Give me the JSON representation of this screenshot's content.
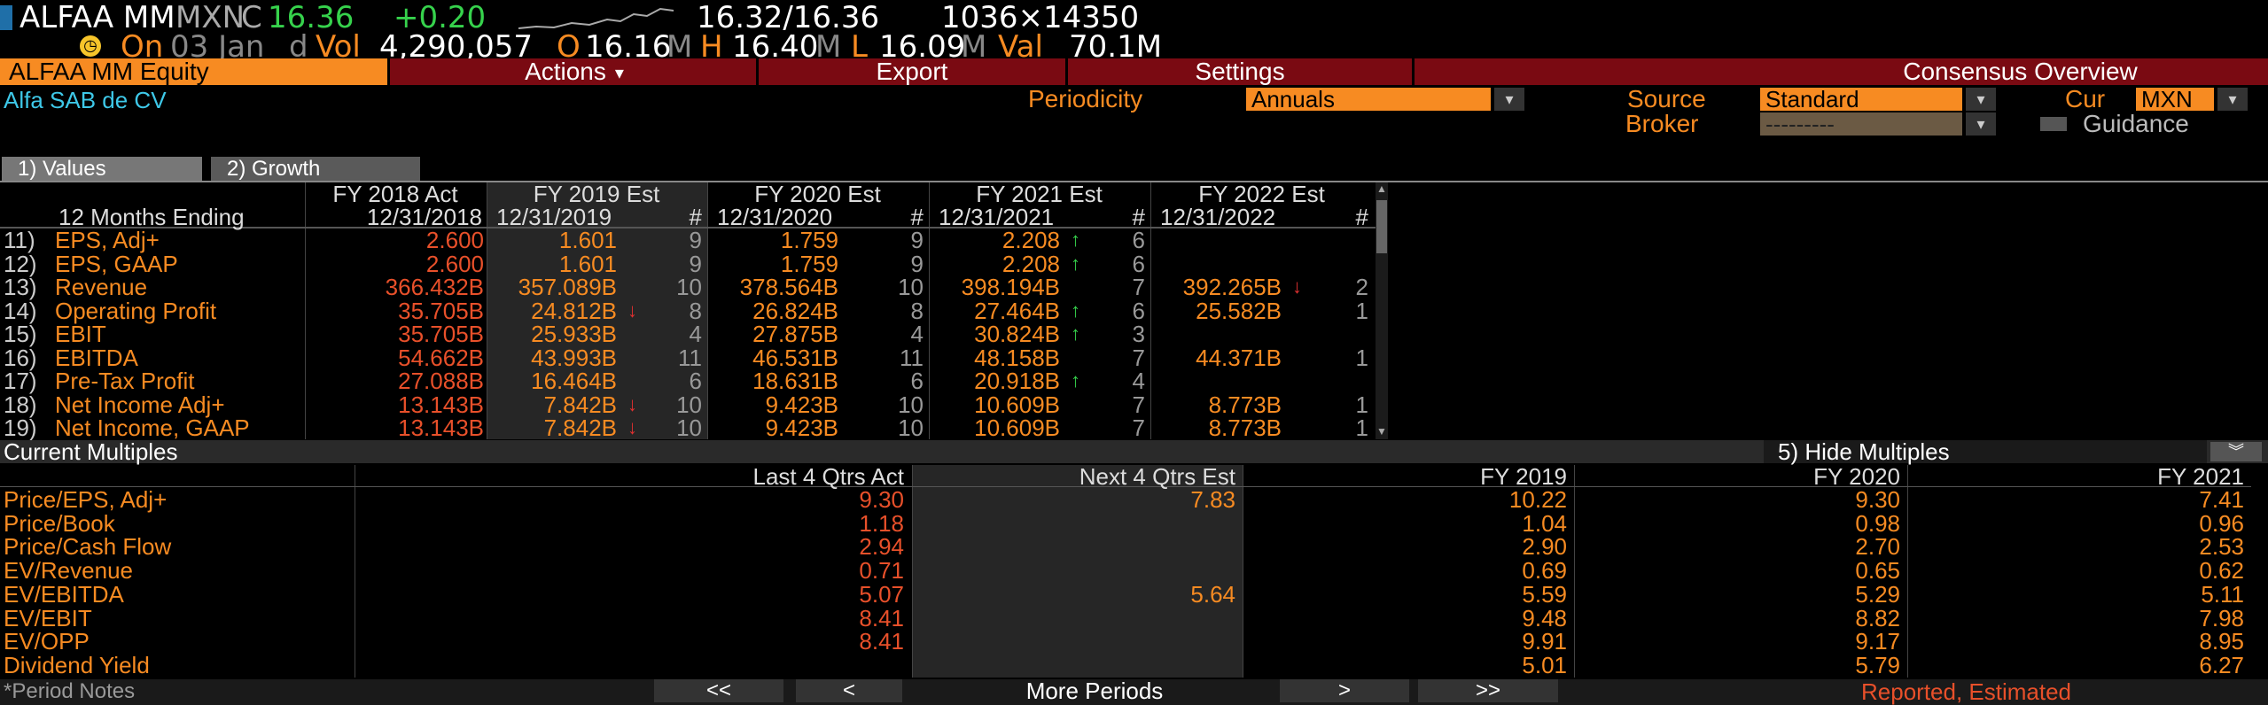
{
  "ticker": {
    "symbol": "ALFAA MM",
    "currency": "MXN",
    "flag": "C",
    "last": "16.36",
    "change": "+0.20",
    "bid_ask": "16.32/16.36",
    "size": "1036×14350",
    "on_label": "On",
    "date": "03 Jan",
    "d": "d",
    "vol_label": "Vol",
    "volume": "4,290,057",
    "open_label": "O",
    "open": "16.16",
    "open_m": "M",
    "high_label": "H",
    "high": "16.40",
    "high_m": "M",
    "low_label": "L",
    "low": "16.09",
    "low_m": "M",
    "val_label": "Val",
    "value": "70.1M"
  },
  "menubar": {
    "security": "ALFAA MM Equity",
    "actions": "Actions",
    "export": "Export",
    "settings": "Settings",
    "consensus": "Consensus Overview"
  },
  "company_name": "Alfa SAB de CV",
  "controls": {
    "periodicity_label": "Periodicity",
    "periodicity_value": "Annuals",
    "source_label": "Source",
    "source_value": "Standard",
    "cur_label": "Cur",
    "cur_value": "MXN",
    "broker_label": "Broker",
    "broker_value": "---------",
    "guidance_label": "Guidance"
  },
  "tabs": [
    "1) Values",
    "2) Growth"
  ],
  "table": {
    "row_header_label": "12 Months Ending",
    "columns": [
      {
        "title": "FY 2018 Act",
        "date": "12/31/2018",
        "count_header": ""
      },
      {
        "title": "FY 2019 Est",
        "date": "12/31/2019",
        "count_header": "#"
      },
      {
        "title": "FY 2020 Est",
        "date": "12/31/2020",
        "count_header": "#"
      },
      {
        "title": "FY 2021 Est",
        "date": "12/31/2021",
        "count_header": "#"
      },
      {
        "title": "FY 2022 Est",
        "date": "12/31/2022",
        "count_header": "#"
      }
    ],
    "rows": [
      {
        "num": "11)",
        "label": "EPS, Adj+",
        "act": "2.600",
        "est": [
          {
            "v": "1.601",
            "n": "9",
            "t": ""
          },
          {
            "v": "1.759",
            "n": "9",
            "t": ""
          },
          {
            "v": "2.208",
            "n": "6",
            "t": "up"
          },
          {
            "v": "",
            "n": "",
            "t": ""
          }
        ]
      },
      {
        "num": "12)",
        "label": "EPS, GAAP",
        "act": "2.600",
        "est": [
          {
            "v": "1.601",
            "n": "9",
            "t": ""
          },
          {
            "v": "1.759",
            "n": "9",
            "t": ""
          },
          {
            "v": "2.208",
            "n": "6",
            "t": "up"
          },
          {
            "v": "",
            "n": "",
            "t": ""
          }
        ]
      },
      {
        "num": "13)",
        "label": "Revenue",
        "act": "366.432B",
        "est": [
          {
            "v": "357.089B",
            "n": "10",
            "t": ""
          },
          {
            "v": "378.564B",
            "n": "10",
            "t": ""
          },
          {
            "v": "398.194B",
            "n": "7",
            "t": ""
          },
          {
            "v": "392.265B",
            "n": "2",
            "t": "down"
          }
        ]
      },
      {
        "num": "14)",
        "label": "Operating Profit",
        "act": "35.705B",
        "est": [
          {
            "v": "24.812B",
            "n": "8",
            "t": "down"
          },
          {
            "v": "26.824B",
            "n": "8",
            "t": ""
          },
          {
            "v": "27.464B",
            "n": "6",
            "t": "up"
          },
          {
            "v": "25.582B",
            "n": "1",
            "t": ""
          }
        ]
      },
      {
        "num": "15)",
        "label": "EBIT",
        "act": "35.705B",
        "est": [
          {
            "v": "25.933B",
            "n": "4",
            "t": ""
          },
          {
            "v": "27.875B",
            "n": "4",
            "t": ""
          },
          {
            "v": "30.824B",
            "n": "3",
            "t": "up"
          },
          {
            "v": "",
            "n": "",
            "t": ""
          }
        ]
      },
      {
        "num": "16)",
        "label": "EBITDA",
        "act": "54.662B",
        "est": [
          {
            "v": "43.993B",
            "n": "11",
            "t": ""
          },
          {
            "v": "46.531B",
            "n": "11",
            "t": ""
          },
          {
            "v": "48.158B",
            "n": "7",
            "t": ""
          },
          {
            "v": "44.371B",
            "n": "1",
            "t": ""
          }
        ]
      },
      {
        "num": "17)",
        "label": "Pre-Tax Profit",
        "act": "27.088B",
        "est": [
          {
            "v": "16.464B",
            "n": "6",
            "t": ""
          },
          {
            "v": "18.631B",
            "n": "6",
            "t": ""
          },
          {
            "v": "20.918B",
            "n": "4",
            "t": "up"
          },
          {
            "v": "",
            "n": "",
            "t": ""
          }
        ]
      },
      {
        "num": "18)",
        "label": "Net Income Adj+",
        "act": "13.143B",
        "est": [
          {
            "v": "7.842B",
            "n": "10",
            "t": "down"
          },
          {
            "v": "9.423B",
            "n": "10",
            "t": ""
          },
          {
            "v": "10.609B",
            "n": "7",
            "t": ""
          },
          {
            "v": "8.773B",
            "n": "1",
            "t": ""
          }
        ]
      },
      {
        "num": "19)",
        "label": "Net Income, GAAP",
        "act": "13.143B",
        "est": [
          {
            "v": "7.842B",
            "n": "10",
            "t": "down"
          },
          {
            "v": "9.423B",
            "n": "10",
            "t": ""
          },
          {
            "v": "10.609B",
            "n": "7",
            "t": ""
          },
          {
            "v": "8.773B",
            "n": "1",
            "t": ""
          }
        ]
      }
    ]
  },
  "multiples": {
    "title": "Current Multiples",
    "hide_label": "5) Hide Multiples",
    "columns": [
      "Last 4 Qtrs Act",
      "Next 4 Qtrs Est",
      "FY 2019",
      "FY 2020",
      "FY 2021"
    ],
    "rows": [
      {
        "label": "Price/EPS, Adj+",
        "values": [
          "9.30",
          "7.83",
          "10.22",
          "9.30",
          "7.41"
        ]
      },
      {
        "label": "Price/Book",
        "values": [
          "1.18",
          "",
          "1.04",
          "0.98",
          "0.96"
        ]
      },
      {
        "label": "Price/Cash Flow",
        "values": [
          "2.94",
          "",
          "2.90",
          "2.70",
          "2.53"
        ]
      },
      {
        "label": "EV/Revenue",
        "values": [
          "0.71",
          "",
          "0.69",
          "0.65",
          "0.62"
        ]
      },
      {
        "label": "EV/EBITDA",
        "values": [
          "5.07",
          "5.64",
          "5.59",
          "5.29",
          "5.11"
        ]
      },
      {
        "label": "EV/EBIT",
        "values": [
          "8.41",
          "",
          "9.48",
          "8.82",
          "7.98"
        ]
      },
      {
        "label": "EV/OPP",
        "values": [
          "8.41",
          "",
          "9.91",
          "9.17",
          "8.95"
        ]
      },
      {
        "label": "Dividend Yield",
        "values": [
          "",
          "",
          "5.01",
          "5.79",
          "6.27"
        ]
      }
    ]
  },
  "bottom": {
    "period_notes": "*Period Notes",
    "first": "<<",
    "prev": "<",
    "more_periods": "More Periods",
    "next": ">",
    "last": ">>",
    "legend": "Reported,  Estimated"
  },
  "colors": {
    "orange": "#f78b22",
    "red": "#e8502a",
    "green": "#36d24c",
    "menubar": "#7a0a12"
  }
}
